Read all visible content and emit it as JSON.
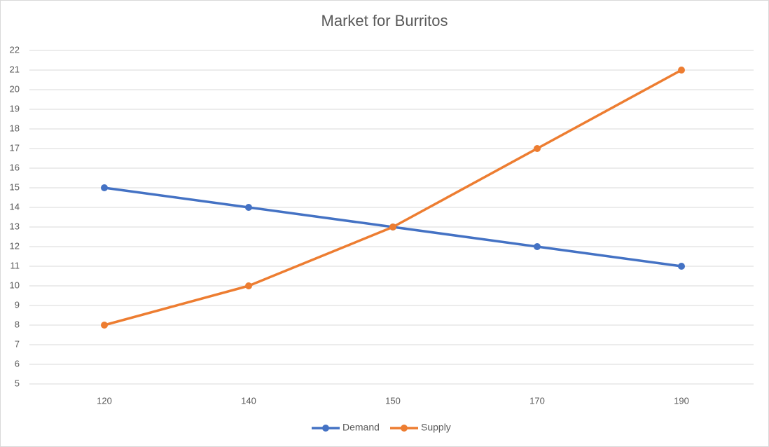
{
  "chart_data": {
    "type": "line",
    "title": "Market for Burritos",
    "categories": [
      "120",
      "140",
      "150",
      "170",
      "190"
    ],
    "series": [
      {
        "name": "Demand",
        "color": "#4472c4",
        "values": [
          15,
          14,
          13,
          12,
          11
        ]
      },
      {
        "name": "Supply",
        "color": "#ed7d31",
        "values": [
          8,
          10,
          13,
          17,
          21
        ]
      }
    ],
    "ylim": [
      5,
      22
    ],
    "yticks": [
      5,
      6,
      7,
      8,
      9,
      10,
      11,
      12,
      13,
      14,
      15,
      16,
      17,
      18,
      19,
      20,
      21,
      22
    ],
    "grid": true,
    "legend": "bottom"
  }
}
